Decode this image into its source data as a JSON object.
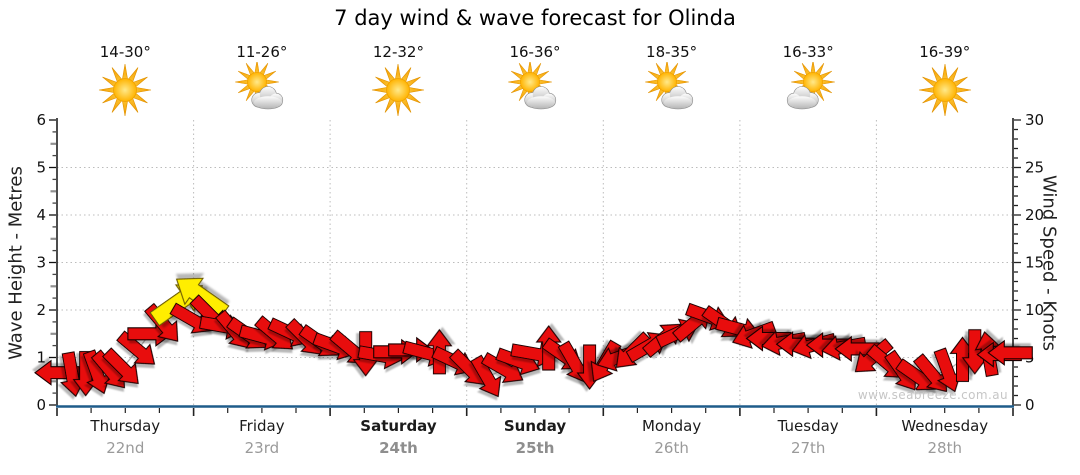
{
  "title": "7 day wind & wave forecast for Olinda",
  "watermark": "www.seabreeze.com.au",
  "days": [
    {
      "name": "Thursday",
      "date": "22nd",
      "temp": "14-30°",
      "icon": "sunny",
      "bold": false
    },
    {
      "name": "Friday",
      "date": "23rd",
      "temp": "11-26°",
      "icon": "partly-cloudy",
      "bold": false
    },
    {
      "name": "Saturday",
      "date": "24th",
      "temp": "12-32°",
      "icon": "sunny",
      "bold": true
    },
    {
      "name": "Sunday",
      "date": "25th",
      "temp": "16-36°",
      "icon": "partly-cloudy",
      "bold": true
    },
    {
      "name": "Monday",
      "date": "26th",
      "temp": "18-35°",
      "icon": "partly-cloudy",
      "bold": false
    },
    {
      "name": "Tuesday",
      "date": "27th",
      "temp": "16-33°",
      "icon": "partly-cloudy-left",
      "bold": false
    },
    {
      "name": "Wednesday",
      "date": "28th",
      "temp": "16-39°",
      "icon": "sunny",
      "bold": false
    }
  ],
  "axes": {
    "left": {
      "title": "Wave Height - Metres",
      "ticks": [
        0,
        1,
        2,
        3,
        4,
        5,
        6
      ],
      "range": [
        0,
        6
      ]
    },
    "right": {
      "title": "Wind Speed - Knots",
      "ticks": [
        0,
        5,
        10,
        15,
        20,
        25,
        30
      ],
      "range": [
        0,
        30
      ]
    }
  },
  "colors": {
    "arrow_red": "#e8090b",
    "arrow_outline": "#1c0000",
    "arrow_yellow": "#ffee00",
    "arrow_yellow_outline": "#6b5a00",
    "axis_x_blue": "#1e5c8a",
    "axis_dark": "#222222",
    "grid": "#bcbcbc",
    "trend_line": "#a9a9a9",
    "sun_inner": "#ffe98a",
    "sun_outer": "#f59d00",
    "cloud_light": "#fdfdfd",
    "cloud_dark": "#b5b5b5"
  },
  "chart_data": {
    "type": "wind-arrows",
    "title": "7 day wind & wave forecast for Olinda",
    "x_unit": "days",
    "x_range": [
      0,
      7
    ],
    "x_categories": [
      "Thursday 22nd",
      "Friday 23rd",
      "Saturday 24th",
      "Sunday 25th",
      "Monday 26th",
      "Tuesday 27th",
      "Wednesday 28th"
    ],
    "y_left": {
      "label": "Wave Height - Metres",
      "range": [
        0,
        6
      ]
    },
    "y_right": {
      "label": "Wind Speed - Knots",
      "range": [
        0,
        30
      ]
    },
    "grid": "dotted, horizontal each 5 knots (1 m), vertical each day",
    "points_format": [
      "day_position",
      "knots",
      "direction_deg_ccw_from_east",
      "strong_flag_yellow"
    ],
    "points": [
      [
        0.0,
        3.4,
        180
      ],
      [
        0.11,
        3.2,
        -80
      ],
      [
        0.21,
        3.3,
        -90
      ],
      [
        0.29,
        3.4,
        -70
      ],
      [
        0.39,
        3.6,
        -50
      ],
      [
        0.48,
        3.9,
        -45
      ],
      [
        0.59,
        5.8,
        -40
      ],
      [
        0.68,
        7.5,
        0
      ],
      [
        0.78,
        8.5,
        -50
      ],
      [
        0.89,
        10.8,
        35,
        1
      ],
      [
        0.99,
        9.0,
        -30
      ],
      [
        1.05,
        11.5,
        145,
        1
      ],
      [
        1.12,
        9.5,
        -45
      ],
      [
        1.21,
        8.3,
        -10
      ],
      [
        1.3,
        7.8,
        -50
      ],
      [
        1.4,
        7.4,
        -35
      ],
      [
        1.5,
        7.2,
        -15
      ],
      [
        1.6,
        7.4,
        -40
      ],
      [
        1.71,
        7.6,
        -25
      ],
      [
        1.82,
        7.0,
        -45
      ],
      [
        1.93,
        6.6,
        -35
      ],
      [
        2.04,
        6.2,
        -20
      ],
      [
        2.15,
        5.9,
        -40
      ],
      [
        2.26,
        5.4,
        -90
      ],
      [
        2.37,
        5.2,
        -10
      ],
      [
        2.48,
        5.6,
        0
      ],
      [
        2.59,
        5.8,
        0
      ],
      [
        2.7,
        5.5,
        -15
      ],
      [
        2.8,
        5.6,
        90
      ],
      [
        2.91,
        4.6,
        -25
      ],
      [
        3.02,
        3.8,
        -45
      ],
      [
        3.15,
        2.9,
        -60
      ],
      [
        3.27,
        3.8,
        -30
      ],
      [
        3.38,
        4.6,
        -20
      ],
      [
        3.49,
        5.4,
        -10
      ],
      [
        3.6,
        6.0,
        90
      ],
      [
        3.71,
        5.2,
        -35
      ],
      [
        3.79,
        4.4,
        -60
      ],
      [
        3.9,
        4.0,
        -90
      ],
      [
        4.01,
        4.5,
        -120
      ],
      [
        4.11,
        5.0,
        -160
      ],
      [
        4.21,
        5.6,
        -135
      ],
      [
        4.33,
        6.2,
        30
      ],
      [
        4.44,
        7.0,
        40
      ],
      [
        4.55,
        7.6,
        25
      ],
      [
        4.66,
        8.6,
        40
      ],
      [
        4.77,
        9.3,
        -20
      ],
      [
        4.88,
        8.6,
        -35
      ],
      [
        4.99,
        8.0,
        -15
      ],
      [
        5.1,
        7.4,
        -160
      ],
      [
        5.21,
        7.0,
        180
      ],
      [
        5.32,
        6.6,
        -170
      ],
      [
        5.43,
        6.4,
        180
      ],
      [
        5.54,
        6.3,
        -165
      ],
      [
        5.65,
        6.3,
        180
      ],
      [
        5.76,
        6.1,
        -170
      ],
      [
        5.86,
        5.9,
        180
      ],
      [
        5.97,
        5.0,
        -140
      ],
      [
        6.08,
        4.4,
        -40
      ],
      [
        6.19,
        3.5,
        -55
      ],
      [
        6.3,
        3.0,
        -35
      ],
      [
        6.41,
        3.2,
        -50
      ],
      [
        6.52,
        3.6,
        -70
      ],
      [
        6.63,
        4.8,
        90
      ],
      [
        6.72,
        5.6,
        -90
      ],
      [
        6.82,
        5.4,
        100
      ],
      [
        6.9,
        5.3,
        180
      ],
      [
        6.98,
        5.5,
        180
      ]
    ]
  }
}
